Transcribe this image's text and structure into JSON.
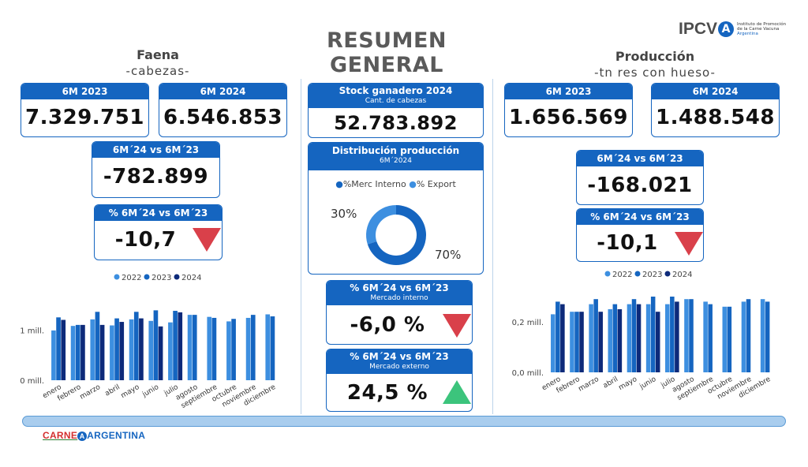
{
  "title": "RESUMEN GENERAL",
  "logo": {
    "name": "IPCV",
    "sub1": "Instituto de Promoción",
    "sub2": "de la Carne Vacuna",
    "sub3": "Argentina"
  },
  "faena": {
    "title": "Faena",
    "subtitle": "-cabezas-",
    "card_2023": {
      "label": "6M 2023",
      "value": "7.329.751"
    },
    "card_2024": {
      "label": "6M 2024",
      "value": "6.546.853"
    },
    "diff": {
      "label": "6M´24 vs 6M´23",
      "value": "-782.899"
    },
    "pct": {
      "label": "% 6M´24 vs 6M´23",
      "value": "-10,7 %"
    }
  },
  "stock": {
    "label": "Stock ganadero 2024",
    "sub": "Cant. de cabezas",
    "value": "52.783.892"
  },
  "distribucion": {
    "label": "Distribución producción",
    "sub": "6M´2024",
    "legend": [
      "%Merc Interno",
      "% Export"
    ],
    "pct_export_label": "30%",
    "pct_interno_label": "70%"
  },
  "mercado_interno": {
    "label": "% 6M´24 vs 6M´23",
    "sub": "Mercado interno",
    "value": "-6,0 %"
  },
  "mercado_externo": {
    "label": "% 6M´24 vs 6M´23",
    "sub": "Mercado externo",
    "value": "24,5 %"
  },
  "produccion": {
    "title": "Producción",
    "subtitle": "-tn res con hueso-",
    "card_2023": {
      "label": "6M 2023",
      "value": "1.656.569"
    },
    "card_2024": {
      "label": "6M 2024",
      "value": "1.488.548"
    },
    "diff": {
      "label": "6M´24 vs 6M´23",
      "value": "-168.021"
    },
    "pct": {
      "label": "% 6M´24 vs 6M´23",
      "value": "-10,1 %"
    }
  },
  "colors": {
    "s2022": "#3d8fe0",
    "s2023": "#1565c0",
    "s2024": "#0d2a7a",
    "accent": "#1565c0",
    "down": "#d9404a",
    "up": "#3cc47c",
    "donut_interno": "#1565c0",
    "donut_export": "#3d8fe0"
  },
  "footer": {
    "brand1": "CARNE",
    "brand_a": "A",
    "brand2": "ARGENTINA"
  },
  "chart_data": [
    {
      "type": "bar",
      "categories": [
        "enero",
        "febrero",
        "marzo",
        "abril",
        "mayo",
        "junio",
        "julio",
        "agosto",
        "septiembre",
        "octubre",
        "noviembre",
        "diciembre"
      ],
      "yticks": [
        "0 mill.",
        "1 mill."
      ],
      "ylim": [
        0,
        1.6
      ],
      "legend": "top-center",
      "series": [
        {
          "name": "2022",
          "values": [
            0.99,
            1.08,
            1.21,
            1.09,
            1.21,
            1.18,
            1.15,
            1.3,
            1.26,
            1.17,
            1.24,
            1.31
          ]
        },
        {
          "name": "2023",
          "values": [
            1.25,
            1.1,
            1.36,
            1.23,
            1.36,
            1.39,
            1.38,
            1.3,
            1.24,
            1.22,
            1.3,
            1.27
          ]
        },
        {
          "name": "2024",
          "values": [
            1.2,
            1.1,
            1.1,
            1.16,
            1.23,
            1.07,
            1.35,
            null,
            null,
            null,
            null,
            null
          ]
        }
      ]
    },
    {
      "type": "donut",
      "categories": [
        "%Merc Interno",
        "% Export"
      ],
      "values": [
        70,
        30
      ]
    },
    {
      "type": "bar",
      "categories": [
        "enero",
        "febrero",
        "marzo",
        "abril",
        "mayo",
        "junio",
        "julio",
        "agosto",
        "septiembre",
        "octubre",
        "noviembre",
        "diciembre"
      ],
      "yticks": [
        "0,0 mill.",
        "0,2 mill."
      ],
      "ylim": [
        0,
        0.35
      ],
      "legend": "top-center",
      "series": [
        {
          "name": "2022",
          "values": [
            0.23,
            0.24,
            0.27,
            0.25,
            0.27,
            0.27,
            0.27,
            0.29,
            0.28,
            0.26,
            0.28,
            0.29
          ]
        },
        {
          "name": "2023",
          "values": [
            0.28,
            0.24,
            0.29,
            0.27,
            0.29,
            0.3,
            0.3,
            0.29,
            0.27,
            0.26,
            0.29,
            0.28
          ]
        },
        {
          "name": "2024",
          "values": [
            0.27,
            0.24,
            0.24,
            0.25,
            0.27,
            0.24,
            0.28,
            null,
            null,
            null,
            null,
            null
          ]
        }
      ]
    }
  ]
}
